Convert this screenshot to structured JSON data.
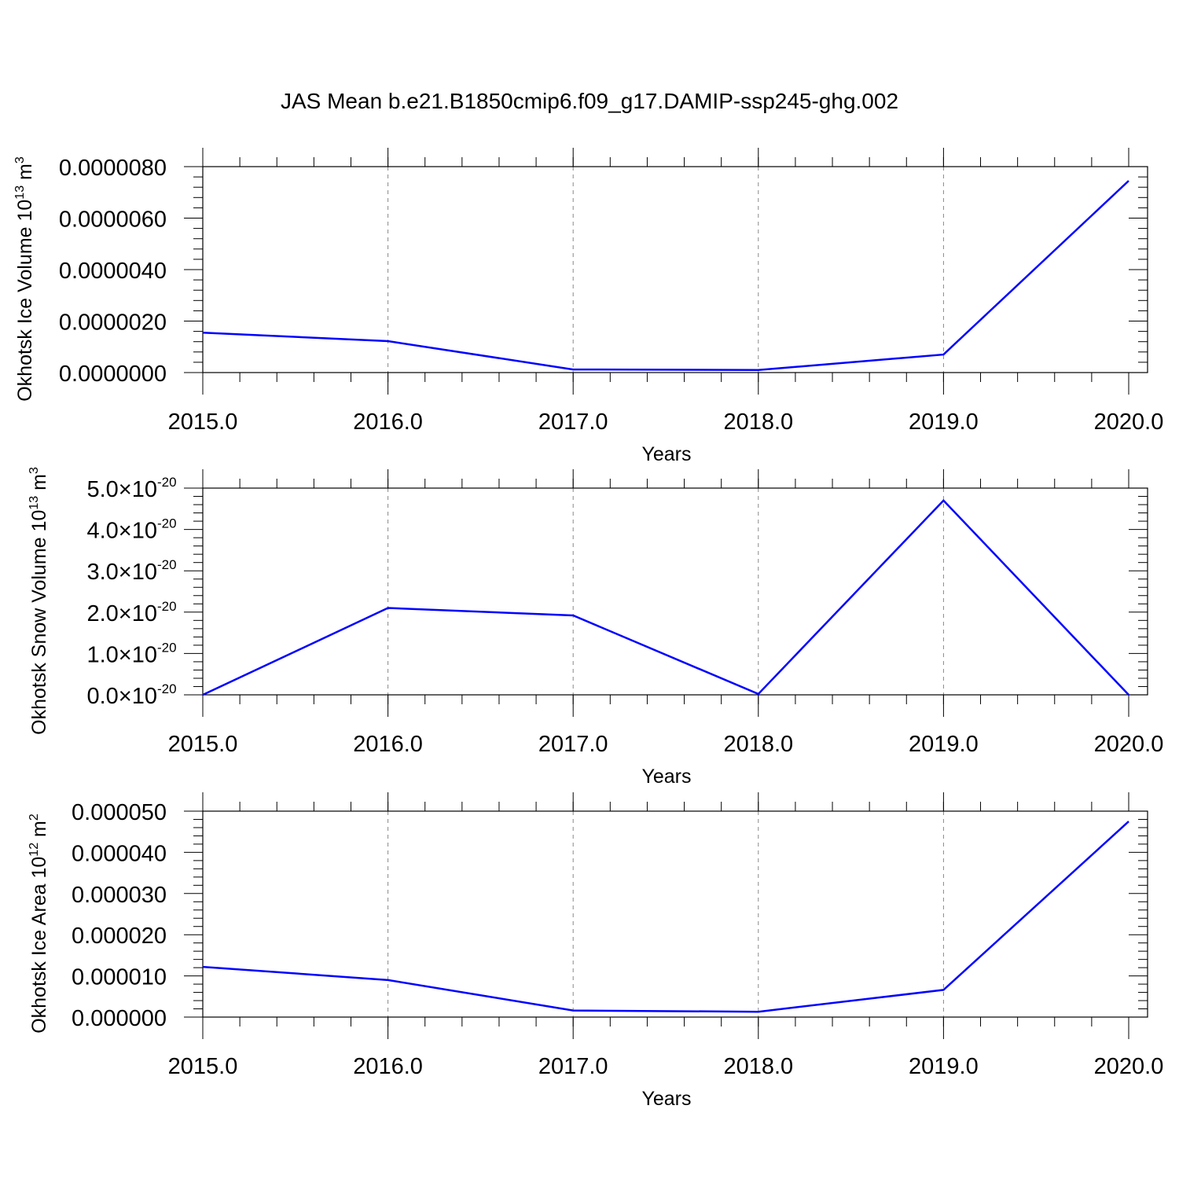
{
  "title": "JAS Mean b.e21.B1850cmip6.f09_g17.DAMIP-ssp245-ghg.002",
  "chart_data": [
    {
      "type": "line",
      "ylabel": "Okhotsk Ice Volume 10",
      "ylabel_exp": "13",
      "ylabel_unit": " m",
      "ylabel_unit_exp": "3",
      "xlabel": "Years",
      "x": [
        2015,
        2016,
        2017,
        2018,
        2019,
        2020
      ],
      "x_tick_labels": [
        "2015.0",
        "2016.0",
        "2017.0",
        "2018.0",
        "2019.0",
        "2020.0"
      ],
      "values": [
        1.55e-06,
        1.22e-06,
        1.2e-07,
        1e-07,
        7e-07,
        7.45e-06
      ],
      "ylim": [
        0,
        8e-06
      ],
      "y_ticks": [
        0,
        2e-06,
        4e-06,
        6e-06,
        8e-06
      ],
      "y_tick_labels": [
        "0.0000000",
        "0.0000020",
        "0.0000040",
        "0.0000060",
        "0.0000080"
      ],
      "y_tick_exp": "",
      "xlim": [
        2015,
        2020
      ],
      "grid": "vertical dashed",
      "color": "#0000ff"
    },
    {
      "type": "line",
      "ylabel": "Okhotsk Snow Volume 10",
      "ylabel_exp": "13",
      "ylabel_unit": " m",
      "ylabel_unit_exp": "3",
      "xlabel": "Years",
      "x": [
        2015,
        2016,
        2017,
        2018,
        2019,
        2020
      ],
      "x_tick_labels": [
        "2015.0",
        "2016.0",
        "2017.0",
        "2018.0",
        "2019.0",
        "2020.0"
      ],
      "values": [
        0.0,
        2.1,
        1.92,
        0.02,
        4.7,
        0.0
      ],
      "ylim": [
        0,
        5
      ],
      "y_ticks": [
        0,
        1,
        2,
        3,
        4,
        5
      ],
      "y_tick_labels": [
        "0.0×10",
        "1.0×10",
        "2.0×10",
        "3.0×10",
        "4.0×10",
        "5.0×10"
      ],
      "y_tick_exp": "-20",
      "xlim": [
        2015,
        2020
      ],
      "grid": "vertical dashed",
      "color": "#0000ff"
    },
    {
      "type": "line",
      "ylabel": "Okhotsk Ice Area 10",
      "ylabel_exp": "12",
      "ylabel_unit": " m",
      "ylabel_unit_exp": "2",
      "xlabel": "Years",
      "x": [
        2015,
        2016,
        2017,
        2018,
        2019,
        2020
      ],
      "x_tick_labels": [
        "2015.0",
        "2016.0",
        "2017.0",
        "2018.0",
        "2019.0",
        "2020.0"
      ],
      "values": [
        1.22e-05,
        9e-06,
        1.6e-06,
        1.3e-06,
        6.6e-06,
        4.75e-05
      ],
      "ylim": [
        0,
        5e-05
      ],
      "y_ticks": [
        0,
        1e-05,
        2e-05,
        3e-05,
        4e-05,
        5e-05
      ],
      "y_tick_labels": [
        "0.000000",
        "0.000010",
        "0.000020",
        "0.000030",
        "0.000040",
        "0.000050"
      ],
      "y_tick_exp": "",
      "xlim": [
        2015,
        2020
      ],
      "grid": "vertical dashed",
      "color": "#0000ff"
    }
  ]
}
